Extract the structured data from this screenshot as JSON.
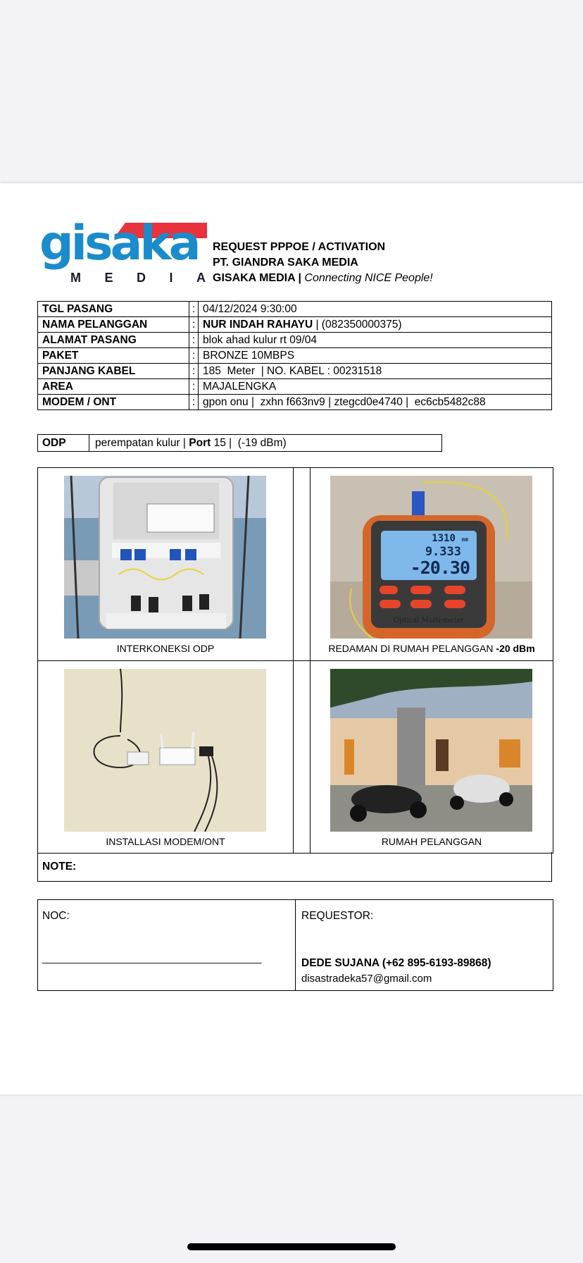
{
  "brand": {
    "logo_main": "gisaka",
    "logo_sub": [
      "M",
      "E",
      "D",
      "I",
      "A"
    ],
    "colors": {
      "blue": "#1a8ccc",
      "red": "#e8323c"
    }
  },
  "header": {
    "line1": "REQUEST PPPOE / ACTIVATION",
    "line2": "PT. GIANDRA SAKA MEDIA",
    "line3_bold": "GISAKA MEDIA |",
    "line3_tag": "Connecting NICE People!"
  },
  "info_rows": [
    {
      "key": "TGL PASANG",
      "colon": ":",
      "value": "04/12/2024 9:30:00"
    },
    {
      "key": "NAMA PELANGGAN",
      "colon": ":",
      "value_bold": "NUR INDAH RAHAYU",
      "value": " | (082350000375)"
    },
    {
      "key": "ALAMAT PASANG",
      "colon": ":",
      "value": "blok ahad kulur rt 09/04"
    },
    {
      "key": "PAKET",
      "colon": ":",
      "value": "BRONZE 10MBPS"
    },
    {
      "key": "PANJANG KABEL",
      "colon": ":",
      "value": "185  Meter  | NO. KABEL : 00231518"
    },
    {
      "key": "AREA",
      "colon": ":",
      "value": "MAJALENGKA"
    },
    {
      "key": "MODEM / ONT",
      "colon": ":",
      "value": "gpon onu |  zxhn f663nv9 | ztegcd0e4740 |  ec6cb5482c88"
    }
  ],
  "odp": {
    "label": "ODP",
    "text1": "perempatan kulur | ",
    "port_label": "Port",
    "text2": " 15 |  (-19 dBm)"
  },
  "meter": {
    "line1": "1310",
    "line1_unit": "nm",
    "line2": "9.333",
    "line3": "-20.30",
    "brand": "Optical Multi-meter"
  },
  "photos": {
    "odp_caption": "INTERKONEKSI ODP",
    "redaman_caption": "REDAMAN DI RUMAH PELANGGAN ",
    "redaman_value": "-20 dBm",
    "modem_caption": "INSTALLASI MODEM/ONT",
    "rumah_caption": "RUMAH PELANGGAN"
  },
  "note_label": "NOTE:",
  "sign": {
    "noc_label": "NOC:",
    "noc_line": "________________________________________",
    "requestor_label": "REQUESTOR:",
    "requestor_name": "DEDE SUJANA (+62 895-6193-89868)",
    "requestor_email": "disastradeka57@gmail.com"
  }
}
